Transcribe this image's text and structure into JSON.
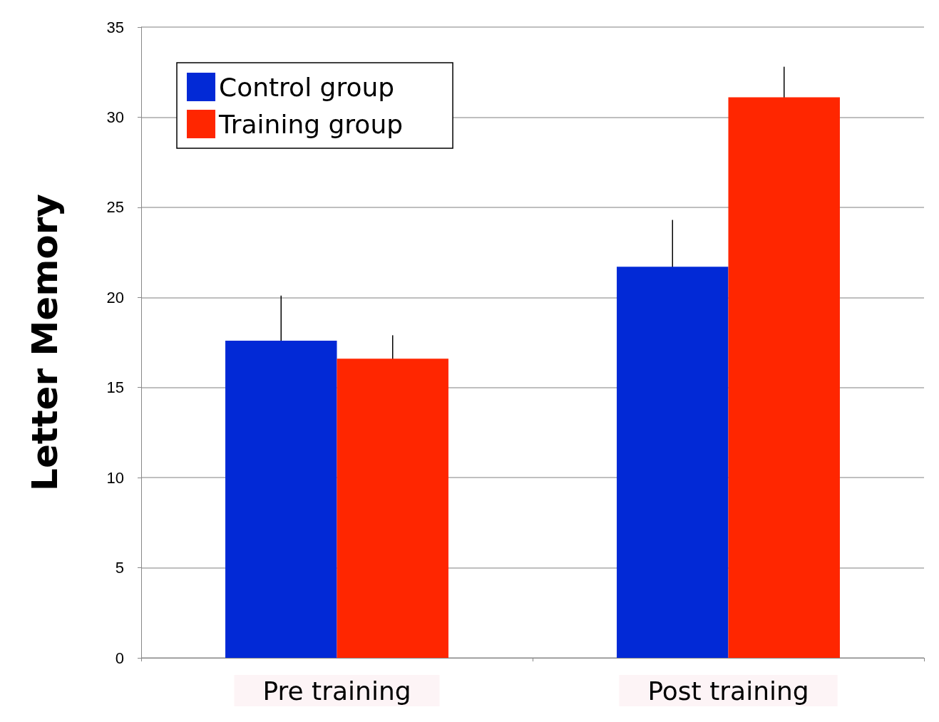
{
  "chart_data": {
    "type": "bar",
    "ylabel": "Letter Memory",
    "categories": [
      "Pre training",
      "Post training"
    ],
    "series": [
      {
        "name": "Control group",
        "color": "#0229d6",
        "values": [
          17.6,
          21.7
        ],
        "errors": [
          2.5,
          2.6
        ]
      },
      {
        "name": "Training group",
        "color": "#ff2600",
        "values": [
          16.6,
          31.1
        ],
        "errors": [
          1.3,
          1.7
        ]
      }
    ],
    "ylim": [
      0,
      35
    ],
    "yticks": [
      0,
      5,
      10,
      15,
      20,
      25,
      30,
      35
    ],
    "grid": "y",
    "legend": "top left"
  }
}
